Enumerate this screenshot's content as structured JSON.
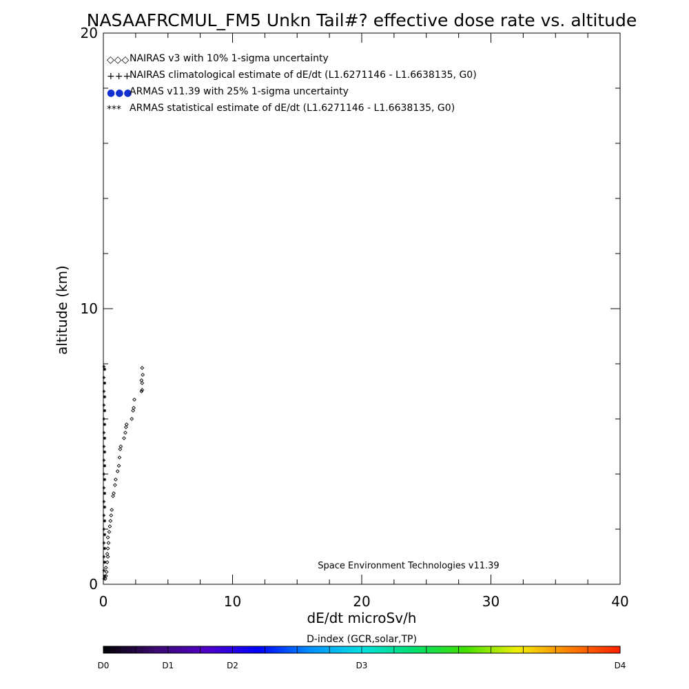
{
  "chart_data": {
    "type": "scatter",
    "title": "NASAAFRCMUL_FM5 Unkn Tail#? effective dose rate vs. altitude",
    "xlabel": "dE/dt microSv/h",
    "ylabel": "altitude (km)",
    "xlim": [
      0,
      40
    ],
    "ylim": [
      0,
      20
    ],
    "x_tick_labels": [
      "0",
      "10",
      "20",
      "30",
      "40"
    ],
    "y_tick_labels": [
      "0",
      "10",
      "20"
    ],
    "legend_position": "top-left",
    "legend": [
      {
        "symbol": "◇◇◇",
        "color": "#000000",
        "label": "NAIRAS v3 with 10% 1-sigma uncertainty"
      },
      {
        "symbol": "+++",
        "color": "#000000",
        "label": "NAIRAS climatological estimate of dE/dt (L1.6271146 - L1.6638135, G0)"
      },
      {
        "symbol": "●●●",
        "color": "#1030d0",
        "label": "ARMAS v11.39 with 25% 1-sigma uncertainty"
      },
      {
        "symbol": "***",
        "color": "#000000",
        "label": "ARMAS statistical estimate of dE/dt (L1.6271146 - L1.6638135, G0)"
      }
    ],
    "annotation": "Space Environment Technologies v11.39",
    "series": [
      {
        "name": "NAIRAS v3 with 10% 1-sigma uncertainty",
        "marker": "diamond",
        "points": [
          [
            0.15,
            0.2
          ],
          [
            0.2,
            0.3
          ],
          [
            0.25,
            0.45
          ],
          [
            0.2,
            0.6
          ],
          [
            0.3,
            0.8
          ],
          [
            0.35,
            1.0
          ],
          [
            0.3,
            1.1
          ],
          [
            0.35,
            1.3
          ],
          [
            0.4,
            1.5
          ],
          [
            0.35,
            1.7
          ],
          [
            0.45,
            1.9
          ],
          [
            0.5,
            2.1
          ],
          [
            0.55,
            2.3
          ],
          [
            0.6,
            2.5
          ],
          [
            0.65,
            2.7
          ],
          [
            0.75,
            3.2
          ],
          [
            0.8,
            3.3
          ],
          [
            0.9,
            3.6
          ],
          [
            0.95,
            3.8
          ],
          [
            1.1,
            4.1
          ],
          [
            1.2,
            4.3
          ],
          [
            1.25,
            4.6
          ],
          [
            1.3,
            4.9
          ],
          [
            1.35,
            5.0
          ],
          [
            1.6,
            5.3
          ],
          [
            1.7,
            5.5
          ],
          [
            1.75,
            5.7
          ],
          [
            1.8,
            5.8
          ],
          [
            2.2,
            6.0
          ],
          [
            2.3,
            6.3
          ],
          [
            2.35,
            6.4
          ],
          [
            2.4,
            6.7
          ],
          [
            2.95,
            7.0
          ],
          [
            3.0,
            7.05
          ],
          [
            3.0,
            7.3
          ],
          [
            2.95,
            7.4
          ],
          [
            3.05,
            7.6
          ],
          [
            3.0,
            7.85
          ]
        ]
      },
      {
        "name": "NAIRAS climatological estimate of dE/dt (L1.6271146 - L1.6638135, G0)",
        "marker": "plus",
        "points": [
          [
            0.05,
            0.2
          ],
          [
            0.05,
            0.5
          ],
          [
            0.05,
            1.0
          ],
          [
            0.05,
            1.5
          ],
          [
            0.05,
            2.0
          ],
          [
            0.05,
            2.5
          ],
          [
            0.05,
            3.0
          ],
          [
            0.05,
            3.5
          ],
          [
            0.05,
            4.0
          ],
          [
            0.05,
            4.5
          ],
          [
            0.05,
            5.0
          ],
          [
            0.05,
            5.5
          ],
          [
            0.05,
            6.0
          ],
          [
            0.05,
            6.5
          ],
          [
            0.05,
            7.0
          ],
          [
            0.05,
            7.5
          ],
          [
            0.05,
            7.9
          ]
        ]
      },
      {
        "name": "ARMAS statistical estimate of dE/dt (L1.6271146 - L1.6638135, G0)",
        "marker": "asterisk",
        "points": [
          [
            0.1,
            0.3
          ],
          [
            0.1,
            0.8
          ],
          [
            0.1,
            1.3
          ],
          [
            0.1,
            1.8
          ],
          [
            0.1,
            2.3
          ],
          [
            0.1,
            2.8
          ],
          [
            0.1,
            3.3
          ],
          [
            0.1,
            3.8
          ],
          [
            0.1,
            4.3
          ],
          [
            0.1,
            4.8
          ],
          [
            0.1,
            5.3
          ],
          [
            0.1,
            5.8
          ],
          [
            0.1,
            6.3
          ],
          [
            0.1,
            6.8
          ],
          [
            0.1,
            7.3
          ],
          [
            0.1,
            7.8
          ]
        ]
      }
    ]
  },
  "colorbar": {
    "title": "D-index (GCR,solar,TP)",
    "stops": [
      "#000000",
      "#3a0a6e",
      "#5000c8",
      "#0000ff",
      "#0090ff",
      "#00e0e0",
      "#00e070",
      "#40e000",
      "#f0f000",
      "#ff8000",
      "#ff2000"
    ],
    "labels": [
      {
        "text": "D0",
        "value": 0
      },
      {
        "text": "D1",
        "value": 0.125
      },
      {
        "text": "D2",
        "value": 0.25
      },
      {
        "text": "D3",
        "value": 0.5
      },
      {
        "text": "D4",
        "value": 1
      }
    ]
  }
}
